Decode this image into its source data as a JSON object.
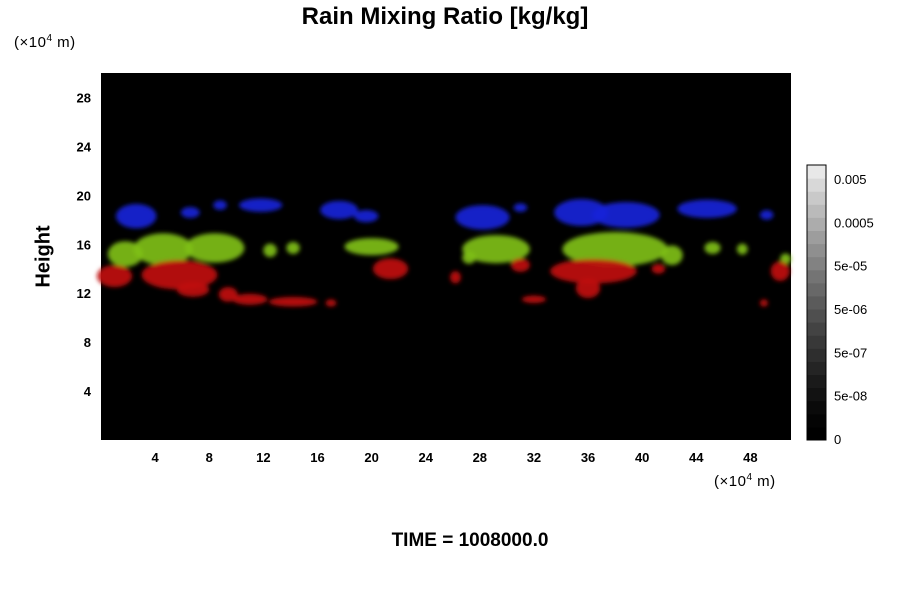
{
  "chart_data": {
    "type": "heatmap",
    "title": "Rain Mixing Ratio [kg/kg]",
    "ylabel": "Height",
    "xlabel": "",
    "x_unit": {
      "pre": "(×10",
      "exp": "4",
      "post": " m)"
    },
    "y_unit": {
      "pre": "(×10",
      "exp": "4",
      "post": " m)"
    },
    "xlim": [
      0,
      51
    ],
    "ylim": [
      0,
      30
    ],
    "x_ticks": [
      4,
      8,
      12,
      16,
      20,
      24,
      28,
      32,
      36,
      40,
      44,
      48
    ],
    "y_ticks": [
      4,
      8,
      12,
      16,
      20,
      24,
      28
    ],
    "background_color": "#000000",
    "colorbar": {
      "tick_labels": [
        "0",
        "5e-08",
        "5e-07",
        "5e-06",
        "5e-05",
        "0.0005",
        "0.005"
      ],
      "levels": 21,
      "min_color": "#000000",
      "max_color": "#ffffff"
    },
    "layers": [
      {
        "color": "#1a24d8",
        "blobs": [
          {
            "x": 2.6,
            "y": 18.3,
            "w": 3.0,
            "h": 2.0
          },
          {
            "x": 6.6,
            "y": 18.6,
            "w": 1.4,
            "h": 0.9
          },
          {
            "x": 8.8,
            "y": 19.2,
            "w": 1.0,
            "h": 0.8
          },
          {
            "x": 11.8,
            "y": 19.2,
            "w": 3.2,
            "h": 1.1
          },
          {
            "x": 17.6,
            "y": 18.8,
            "w": 2.8,
            "h": 1.5
          },
          {
            "x": 19.6,
            "y": 18.3,
            "w": 1.8,
            "h": 1.0
          },
          {
            "x": 28.2,
            "y": 18.2,
            "w": 4.0,
            "h": 2.0
          },
          {
            "x": 31.0,
            "y": 19.0,
            "w": 1.0,
            "h": 0.7
          },
          {
            "x": 35.5,
            "y": 18.6,
            "w": 4.0,
            "h": 2.2
          },
          {
            "x": 38.8,
            "y": 18.4,
            "w": 5.0,
            "h": 2.1
          },
          {
            "x": 44.8,
            "y": 18.9,
            "w": 4.4,
            "h": 1.5
          },
          {
            "x": 49.2,
            "y": 18.4,
            "w": 1.0,
            "h": 0.8
          }
        ]
      },
      {
        "color": "#7fbf1a",
        "blobs": [
          {
            "x": 1.8,
            "y": 15.2,
            "w": 2.6,
            "h": 2.1
          },
          {
            "x": 4.6,
            "y": 15.6,
            "w": 4.4,
            "h": 2.6
          },
          {
            "x": 8.4,
            "y": 15.7,
            "w": 4.4,
            "h": 2.4
          },
          {
            "x": 12.5,
            "y": 15.5,
            "w": 1.0,
            "h": 1.1
          },
          {
            "x": 14.2,
            "y": 15.7,
            "w": 1.0,
            "h": 1.0
          },
          {
            "x": 20.0,
            "y": 15.8,
            "w": 4.0,
            "h": 1.4
          },
          {
            "x": 29.2,
            "y": 15.6,
            "w": 5.0,
            "h": 2.3
          },
          {
            "x": 27.2,
            "y": 14.9,
            "w": 1.0,
            "h": 1.0
          },
          {
            "x": 38.0,
            "y": 15.6,
            "w": 7.8,
            "h": 2.8
          },
          {
            "x": 42.2,
            "y": 15.1,
            "w": 1.6,
            "h": 1.6
          },
          {
            "x": 45.2,
            "y": 15.7,
            "w": 1.2,
            "h": 1.0
          },
          {
            "x": 47.4,
            "y": 15.6,
            "w": 0.8,
            "h": 0.9
          },
          {
            "x": 50.6,
            "y": 14.8,
            "w": 0.8,
            "h": 0.9
          }
        ]
      },
      {
        "color": "#c01010",
        "blobs": [
          {
            "x": 1.0,
            "y": 13.4,
            "w": 2.6,
            "h": 1.8
          },
          {
            "x": 5.8,
            "y": 13.5,
            "w": 5.6,
            "h": 2.4
          },
          {
            "x": 6.8,
            "y": 12.3,
            "w": 2.4,
            "h": 1.2
          },
          {
            "x": 9.4,
            "y": 11.9,
            "w": 1.4,
            "h": 1.2
          },
          {
            "x": 11.0,
            "y": 11.5,
            "w": 2.6,
            "h": 0.9
          },
          {
            "x": 14.2,
            "y": 11.3,
            "w": 3.6,
            "h": 0.8
          },
          {
            "x": 17.0,
            "y": 11.2,
            "w": 0.8,
            "h": 0.6
          },
          {
            "x": 21.4,
            "y": 14.0,
            "w": 2.6,
            "h": 1.7
          },
          {
            "x": 26.2,
            "y": 13.3,
            "w": 0.8,
            "h": 1.0
          },
          {
            "x": 31.0,
            "y": 14.3,
            "w": 1.4,
            "h": 1.1
          },
          {
            "x": 32.0,
            "y": 11.5,
            "w": 1.8,
            "h": 0.6
          },
          {
            "x": 36.4,
            "y": 13.8,
            "w": 6.4,
            "h": 2.0
          },
          {
            "x": 36.0,
            "y": 12.4,
            "w": 1.8,
            "h": 1.6
          },
          {
            "x": 41.2,
            "y": 14.0,
            "w": 1.0,
            "h": 0.8
          },
          {
            "x": 50.2,
            "y": 13.8,
            "w": 1.4,
            "h": 1.6
          },
          {
            "x": 49.0,
            "y": 11.2,
            "w": 0.6,
            "h": 0.6
          }
        ]
      }
    ]
  },
  "footer": {
    "time_label": "TIME = 1008000.0"
  }
}
